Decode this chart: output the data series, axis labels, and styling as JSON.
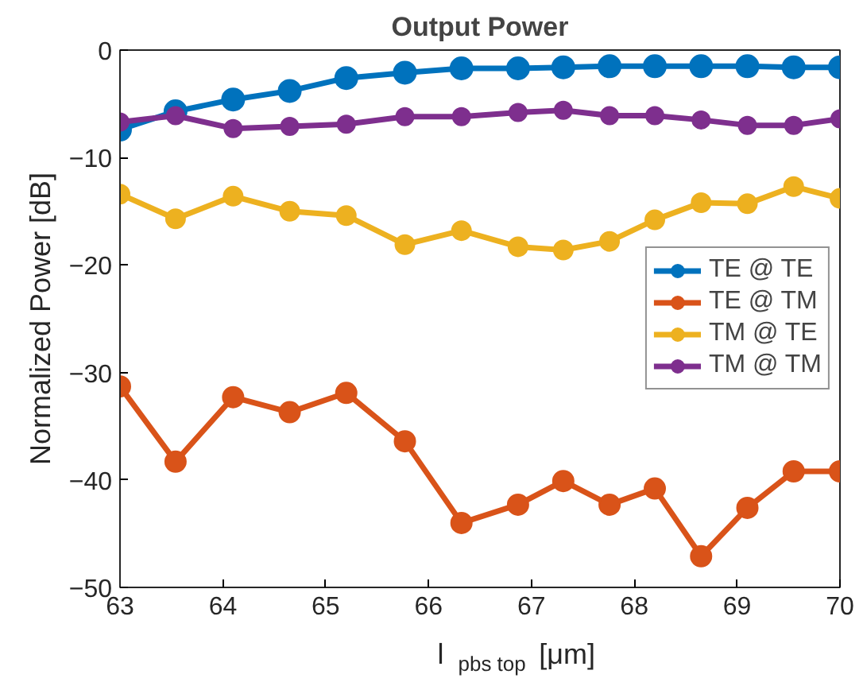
{
  "chart_data": {
    "type": "line",
    "title": "Output Power",
    "xlabel": "l$_{pbs top}$ [μm]",
    "ylabel": "Normalized Power [dB]",
    "x": [
      63,
      63.54,
      64.1,
      64.65,
      65.2,
      65.77,
      66.32,
      66.87,
      67.31,
      67.76,
      68.2,
      68.65,
      69.1,
      69.55,
      70
    ],
    "series": [
      {
        "name": "TE @ TE",
        "color": "#0072bd",
        "values": [
          -7.4,
          -5.7,
          -4.6,
          -3.8,
          -2.6,
          -2.1,
          -1.7,
          -1.7,
          -1.6,
          -1.5,
          -1.5,
          -1.5,
          -1.5,
          -1.6,
          -1.6
        ]
      },
      {
        "name": "TE @ TM",
        "color": "#d95319",
        "values": [
          -31.3,
          -38.3,
          -32.3,
          -33.7,
          -31.9,
          -36.4,
          -44.0,
          -42.3,
          -40.1,
          -42.3,
          -40.8,
          -47.1,
          -42.6,
          -39.2,
          -39.2
        ]
      },
      {
        "name": "TM @ TE",
        "color": "#edb120",
        "values": [
          -13.4,
          -15.7,
          -13.6,
          -15.0,
          -15.4,
          -18.1,
          -16.8,
          -18.3,
          -18.6,
          -17.8,
          -15.8,
          -14.2,
          -14.3,
          -12.7,
          -13.8
        ]
      },
      {
        "name": "TM @ TM",
        "color": "#7e2f8e",
        "values": [
          -6.7,
          -6.1,
          -7.3,
          -7.1,
          -6.9,
          -6.2,
          -6.2,
          -5.8,
          -5.6,
          -6.1,
          -6.1,
          -6.5,
          -7.0,
          -7.0,
          -6.4
        ]
      }
    ],
    "xlim": [
      63,
      70
    ],
    "ylim": [
      -50,
      0
    ],
    "xticks": [
      63,
      64,
      65,
      66,
      67,
      68,
      69,
      70
    ],
    "yticks": [
      -50,
      -40,
      -30,
      -20,
      -10,
      0
    ],
    "grid": false,
    "legend": "right",
    "marker": "circle",
    "line_style": "solid"
  }
}
